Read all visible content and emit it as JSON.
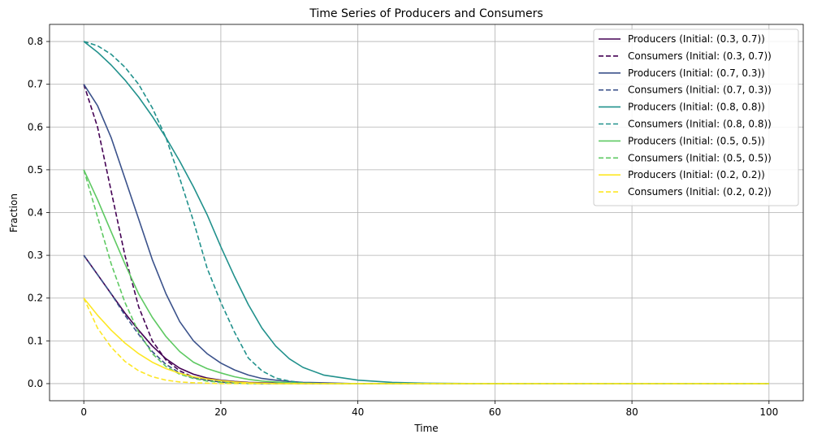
{
  "chart_data": {
    "type": "line",
    "title": "Time Series of Producers and Consumers",
    "xlabel": "Time",
    "ylabel": "Fraction",
    "xlim": [
      -5,
      105
    ],
    "ylim": [
      -0.04,
      0.84
    ],
    "xticks": [
      0,
      20,
      40,
      60,
      80,
      100
    ],
    "yticks": [
      0.0,
      0.1,
      0.2,
      0.3,
      0.4,
      0.5,
      0.6,
      0.7,
      0.8
    ],
    "xtick_labels": [
      "0",
      "20",
      "40",
      "60",
      "80",
      "100"
    ],
    "ytick_labels": [
      "0.0",
      "0.1",
      "0.2",
      "0.3",
      "0.4",
      "0.5",
      "0.6",
      "0.7",
      "0.8"
    ],
    "grid": true,
    "legend_position": "top-right",
    "x": [
      0,
      2,
      4,
      6,
      8,
      10,
      12,
      14,
      16,
      18,
      20,
      22,
      24,
      26,
      28,
      30,
      32,
      35,
      40,
      45,
      50,
      60,
      70,
      80,
      90,
      100
    ],
    "series": [
      {
        "name": "Producers (Initial: (0.3, 0.7))",
        "color": "#440154",
        "dash": "solid",
        "values": [
          0.3,
          0.255,
          0.21,
          0.165,
          0.125,
          0.088,
          0.058,
          0.036,
          0.022,
          0.013,
          0.008,
          0.005,
          0.003,
          0.002,
          0.001,
          0.001,
          0.0,
          0.0,
          0.0,
          0.0,
          0.0,
          0.0,
          0.0,
          0.0,
          0.0,
          0.0
        ]
      },
      {
        "name": "Consumers (Initial: (0.3, 0.7))",
        "color": "#440154",
        "dash": "dashed",
        "values": [
          0.7,
          0.6,
          0.45,
          0.3,
          0.18,
          0.1,
          0.055,
          0.03,
          0.015,
          0.008,
          0.004,
          0.002,
          0.001,
          0.0,
          0.0,
          0.0,
          0.0,
          0.0,
          0.0,
          0.0,
          0.0,
          0.0,
          0.0,
          0.0,
          0.0,
          0.0
        ]
      },
      {
        "name": "Producers (Initial: (0.7, 0.3))",
        "color": "#3b528b",
        "dash": "solid",
        "values": [
          0.7,
          0.65,
          0.575,
          0.48,
          0.385,
          0.29,
          0.21,
          0.145,
          0.1,
          0.07,
          0.048,
          0.032,
          0.02,
          0.012,
          0.008,
          0.005,
          0.003,
          0.002,
          0.0,
          0.0,
          0.0,
          0.0,
          0.0,
          0.0,
          0.0,
          0.0
        ]
      },
      {
        "name": "Consumers (Initial: (0.7, 0.3))",
        "color": "#3b528b",
        "dash": "dashed",
        "values": [
          0.3,
          0.255,
          0.21,
          0.16,
          0.115,
          0.075,
          0.045,
          0.025,
          0.014,
          0.008,
          0.004,
          0.002,
          0.001,
          0.0,
          0.0,
          0.0,
          0.0,
          0.0,
          0.0,
          0.0,
          0.0,
          0.0,
          0.0,
          0.0,
          0.0,
          0.0
        ]
      },
      {
        "name": "Producers (Initial: (0.8, 0.8))",
        "color": "#21918c",
        "dash": "solid",
        "values": [
          0.8,
          0.775,
          0.745,
          0.71,
          0.67,
          0.625,
          0.575,
          0.52,
          0.46,
          0.395,
          0.32,
          0.25,
          0.185,
          0.13,
          0.088,
          0.058,
          0.038,
          0.02,
          0.008,
          0.003,
          0.001,
          0.0,
          0.0,
          0.0,
          0.0,
          0.0
        ]
      },
      {
        "name": "Consumers (Initial: (0.8, 0.8))",
        "color": "#21918c",
        "dash": "dashed",
        "values": [
          0.8,
          0.79,
          0.77,
          0.74,
          0.7,
          0.645,
          0.575,
          0.48,
          0.38,
          0.27,
          0.19,
          0.12,
          0.06,
          0.03,
          0.013,
          0.006,
          0.002,
          0.0,
          0.0,
          0.0,
          0.0,
          0.0,
          0.0,
          0.0,
          0.0,
          0.0
        ]
      },
      {
        "name": "Producers (Initial: (0.5, 0.5))",
        "color": "#5ec962",
        "dash": "solid",
        "values": [
          0.5,
          0.43,
          0.355,
          0.28,
          0.21,
          0.155,
          0.11,
          0.075,
          0.05,
          0.035,
          0.025,
          0.016,
          0.01,
          0.006,
          0.004,
          0.002,
          0.001,
          0.0,
          0.0,
          0.0,
          0.0,
          0.0,
          0.0,
          0.0,
          0.0,
          0.0
        ]
      },
      {
        "name": "Consumers (Initial: (0.5, 0.5))",
        "color": "#5ec962",
        "dash": "dashed",
        "values": [
          0.5,
          0.39,
          0.28,
          0.19,
          0.12,
          0.07,
          0.04,
          0.022,
          0.012,
          0.006,
          0.003,
          0.001,
          0.0,
          0.0,
          0.0,
          0.0,
          0.0,
          0.0,
          0.0,
          0.0,
          0.0,
          0.0,
          0.0,
          0.0,
          0.0,
          0.0
        ]
      },
      {
        "name": "Producers (Initial: (0.2, 0.2))",
        "color": "#fde725",
        "dash": "solid",
        "values": [
          0.2,
          0.16,
          0.125,
          0.095,
          0.07,
          0.05,
          0.035,
          0.024,
          0.016,
          0.011,
          0.007,
          0.004,
          0.002,
          0.001,
          0.0,
          0.0,
          0.0,
          0.0,
          0.0,
          0.0,
          0.0,
          0.0,
          0.0,
          0.0,
          0.0,
          0.0
        ]
      },
      {
        "name": "Consumers (Initial: (0.2, 0.2))",
        "color": "#fde725",
        "dash": "dashed",
        "values": [
          0.2,
          0.13,
          0.085,
          0.052,
          0.03,
          0.016,
          0.008,
          0.004,
          0.002,
          0.001,
          0.0,
          0.0,
          0.0,
          0.0,
          0.0,
          0.0,
          0.0,
          0.0,
          0.0,
          0.0,
          0.0,
          0.0,
          0.0,
          0.0,
          0.0,
          0.0
        ]
      }
    ]
  }
}
